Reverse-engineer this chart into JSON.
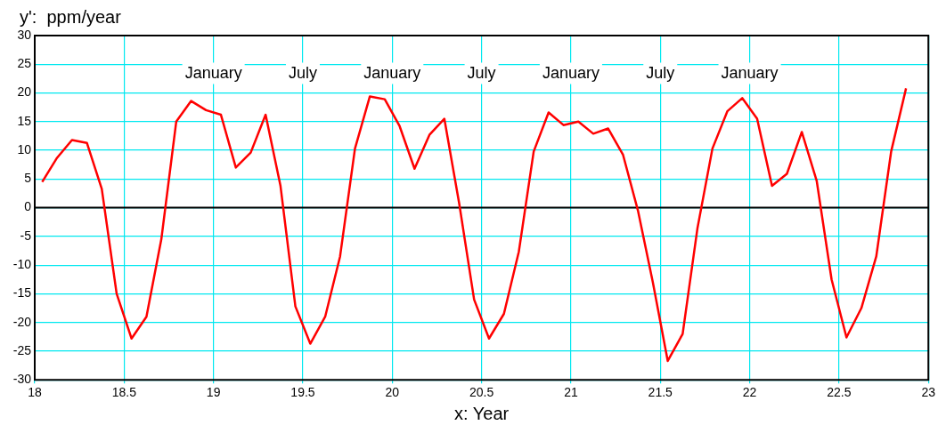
{
  "chart_data": {
    "type": "line",
    "xlabel": "x: Year",
    "ylabel": "y':  ppm/year",
    "x": [
      18.0417,
      18.125,
      18.2083,
      18.2917,
      18.375,
      18.4583,
      18.5417,
      18.625,
      18.7083,
      18.7917,
      18.875,
      18.9583,
      19.0417,
      19.125,
      19.2083,
      19.2917,
      19.375,
      19.4583,
      19.5417,
      19.625,
      19.7083,
      19.7917,
      19.875,
      19.9583,
      20.0417,
      20.125,
      20.2083,
      20.2917,
      20.375,
      20.4583,
      20.5417,
      20.625,
      20.7083,
      20.7917,
      20.875,
      20.9583,
      21.0417,
      21.125,
      21.2083,
      21.2917,
      21.375,
      21.4583,
      21.5417,
      21.625,
      21.7083,
      21.7917,
      21.875,
      21.9583,
      22.0417,
      22.125,
      22.2083,
      22.2917,
      22.375,
      22.4583,
      22.5417,
      22.625,
      22.7083,
      22.7917,
      22.875
    ],
    "series": [
      {
        "color": "#ff0000",
        "values": [
          4.5,
          8.7,
          11.8,
          11.3,
          3.3,
          -15,
          -22.8,
          -19,
          -5.5,
          15,
          18.6,
          17,
          16.2,
          7,
          9.6,
          16.2,
          3.8,
          -17.2,
          -23.7,
          -19,
          -8.5,
          10.3,
          19.4,
          18.9,
          14.2,
          6.8,
          12.7,
          15.5,
          0.7,
          -16,
          -22.8,
          -18.5,
          -7.7,
          9.8,
          16.6,
          14.4,
          15,
          12.9,
          13.8,
          9.2,
          -0.5,
          -13,
          -26.7,
          -22,
          -3.5,
          10.3,
          16.8,
          19.1,
          15.5,
          3.8,
          5.9,
          13.2,
          4.7,
          -12.5,
          -22.6,
          -17.5,
          -8.5,
          9.8,
          20.8
        ]
      }
    ],
    "xlim": [
      18,
      23
    ],
    "xticks": [
      18,
      18.5,
      19,
      19.5,
      20,
      20.5,
      21,
      21.5,
      22,
      22.5,
      23
    ],
    "ylim": [
      -30,
      30
    ],
    "yticks": [
      -30,
      -25,
      -20,
      -15,
      -10,
      -5,
      0,
      5,
      10,
      15,
      20,
      25,
      30
    ],
    "grid": true,
    "marker": "none",
    "line_style": "solid",
    "legend": false,
    "ref_lines": [
      {
        "axis": "y",
        "value": 0,
        "color": "#000000"
      }
    ],
    "annotations": [
      "January",
      "July",
      "January",
      "July",
      "January",
      "July",
      "January"
    ]
  }
}
